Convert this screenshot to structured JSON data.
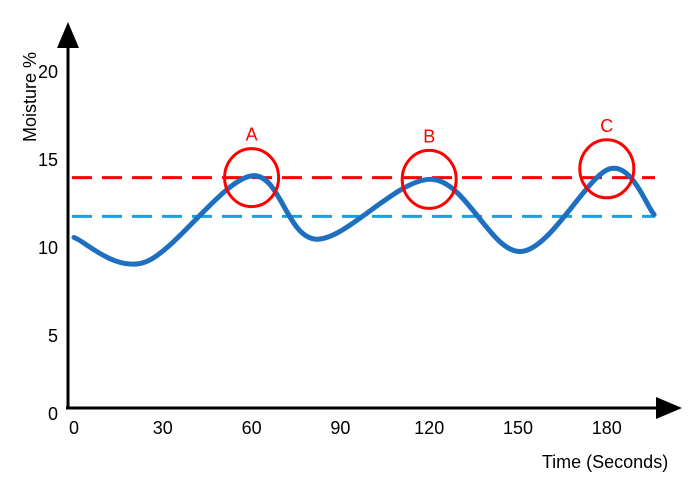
{
  "chart_data": {
    "type": "line",
    "title": "",
    "xlabel": "Time (Seconds)",
    "ylabel": "Moisture %",
    "xlim": [
      0,
      200
    ],
    "ylim": [
      0,
      20
    ],
    "x_ticks": [
      0,
      30,
      60,
      90,
      120,
      150,
      180
    ],
    "y_ticks": [
      0,
      5,
      10,
      15,
      20
    ],
    "grid": false,
    "series": [
      {
        "name": "moisture",
        "color": "#1f6fc0",
        "x": [
          0,
          24,
          60,
          82,
          121,
          151,
          181,
          196
        ],
        "y": [
          10.6,
          9.2,
          14.1,
          10.5,
          13.9,
          9.8,
          14.5,
          11.9
        ]
      }
    ],
    "thresholds": [
      {
        "name": "upper",
        "value": 14.0,
        "color": "#ff0000"
      },
      {
        "name": "lower",
        "value": 11.8,
        "color": "#1aa0e0"
      }
    ],
    "annotations": [
      {
        "label": "A",
        "x": 60,
        "y": 14.0
      },
      {
        "label": "B",
        "x": 120,
        "y": 13.9
      },
      {
        "label": "C",
        "x": 180,
        "y": 14.5
      }
    ]
  }
}
